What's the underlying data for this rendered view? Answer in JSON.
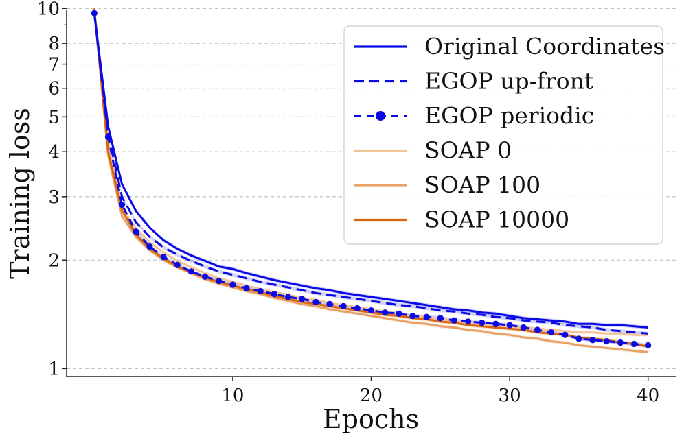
{
  "chart_data": {
    "type": "line",
    "xlabel": "Epochs",
    "ylabel": "Training loss",
    "yscale": "log",
    "xlim": [
      -2,
      42
    ],
    "ylim": [
      0.95,
      10.1
    ],
    "x_ticks": [
      10,
      20,
      30,
      40
    ],
    "x_tick_labels": [
      "10",
      "20",
      "30",
      "40"
    ],
    "y_ticks": [
      1,
      2,
      3,
      4,
      5,
      6,
      7,
      8,
      10
    ],
    "y_tick_labels": [
      "1",
      "2",
      "3",
      "4",
      "5",
      "6",
      "7",
      "8",
      "10"
    ],
    "grid": "horizontal dashed",
    "legend_position": "top-right",
    "x": [
      0,
      1,
      2,
      3,
      4,
      5,
      6,
      7,
      8,
      9,
      10,
      11,
      12,
      13,
      14,
      15,
      16,
      17,
      18,
      19,
      20,
      21,
      22,
      23,
      24,
      25,
      26,
      27,
      28,
      29,
      30,
      31,
      32,
      33,
      34,
      35,
      36,
      37,
      38,
      39,
      40
    ],
    "series": [
      {
        "name": "Original Coordinates",
        "color": "#0a0ae6",
        "style": "solid",
        "values": [
          9.7,
          4.7,
          3.25,
          2.74,
          2.46,
          2.27,
          2.15,
          2.06,
          1.99,
          1.92,
          1.89,
          1.84,
          1.8,
          1.76,
          1.73,
          1.7,
          1.67,
          1.65,
          1.62,
          1.6,
          1.58,
          1.56,
          1.54,
          1.52,
          1.5,
          1.48,
          1.46,
          1.45,
          1.43,
          1.42,
          1.4,
          1.38,
          1.37,
          1.36,
          1.35,
          1.33,
          1.33,
          1.32,
          1.32,
          1.31,
          1.3
        ]
      },
      {
        "name": "EGOP up-front",
        "color": "#0a0ae6",
        "style": "dashed",
        "values": [
          9.7,
          4.5,
          3.0,
          2.55,
          2.32,
          2.17,
          2.07,
          1.99,
          1.92,
          1.86,
          1.82,
          1.78,
          1.74,
          1.71,
          1.68,
          1.65,
          1.62,
          1.6,
          1.58,
          1.56,
          1.54,
          1.52,
          1.5,
          1.49,
          1.47,
          1.45,
          1.44,
          1.42,
          1.41,
          1.39,
          1.38,
          1.36,
          1.35,
          1.34,
          1.32,
          1.31,
          1.3,
          1.28,
          1.27,
          1.26,
          1.25
        ]
      },
      {
        "name": "EGOP periodic",
        "color": "#0a0ae6",
        "style": "dash-dot-marker",
        "values": [
          9.7,
          4.4,
          2.85,
          2.4,
          2.18,
          2.04,
          1.94,
          1.86,
          1.8,
          1.75,
          1.71,
          1.67,
          1.64,
          1.61,
          1.58,
          1.56,
          1.53,
          1.51,
          1.49,
          1.47,
          1.45,
          1.43,
          1.42,
          1.4,
          1.39,
          1.38,
          1.36,
          1.35,
          1.34,
          1.33,
          1.32,
          1.3,
          1.28,
          1.26,
          1.24,
          1.21,
          1.2,
          1.19,
          1.18,
          1.17,
          1.16
        ]
      },
      {
        "name": "SOAP 0",
        "color": "#f3c39a",
        "style": "solid",
        "values": [
          9.8,
          4.2,
          2.8,
          2.45,
          2.24,
          2.1,
          1.99,
          1.91,
          1.84,
          1.78,
          1.74,
          1.7,
          1.66,
          1.63,
          1.6,
          1.57,
          1.55,
          1.52,
          1.5,
          1.48,
          1.46,
          1.44,
          1.42,
          1.4,
          1.39,
          1.37,
          1.36,
          1.34,
          1.33,
          1.32,
          1.31,
          1.3,
          1.29,
          1.28,
          1.27,
          1.26,
          1.26,
          1.25,
          1.25,
          1.24,
          1.24
        ]
      },
      {
        "name": "SOAP 100",
        "color": "#e8a066",
        "style": "solid",
        "values": [
          9.9,
          3.9,
          2.65,
          2.32,
          2.13,
          2.0,
          1.91,
          1.84,
          1.77,
          1.72,
          1.68,
          1.64,
          1.61,
          1.57,
          1.54,
          1.51,
          1.49,
          1.46,
          1.44,
          1.42,
          1.4,
          1.38,
          1.36,
          1.34,
          1.33,
          1.31,
          1.3,
          1.28,
          1.27,
          1.25,
          1.24,
          1.22,
          1.21,
          1.19,
          1.18,
          1.16,
          1.15,
          1.14,
          1.13,
          1.12,
          1.11
        ]
      },
      {
        "name": "SOAP 10000",
        "color": "#d9660c",
        "style": "solid",
        "values": [
          10.0,
          4.0,
          2.75,
          2.36,
          2.15,
          2.02,
          1.92,
          1.85,
          1.79,
          1.74,
          1.7,
          1.66,
          1.63,
          1.59,
          1.56,
          1.53,
          1.51,
          1.49,
          1.47,
          1.45,
          1.43,
          1.41,
          1.4,
          1.38,
          1.37,
          1.35,
          1.34,
          1.32,
          1.31,
          1.3,
          1.29,
          1.28,
          1.26,
          1.25,
          1.24,
          1.22,
          1.21,
          1.2,
          1.18,
          1.17,
          1.15
        ]
      }
    ]
  }
}
